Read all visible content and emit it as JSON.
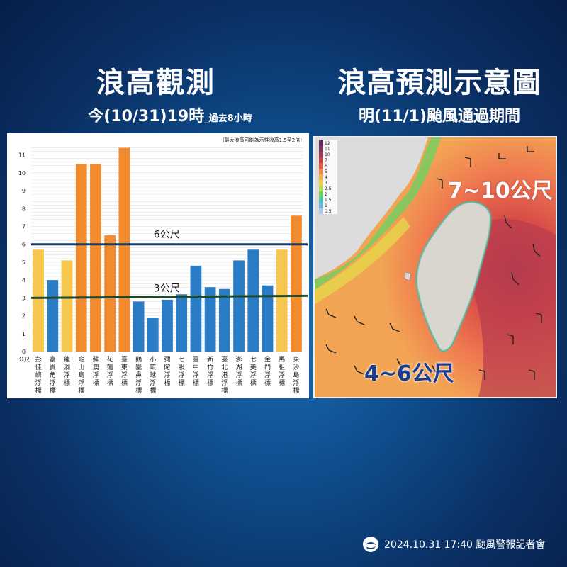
{
  "header": {
    "left_title": "浪高觀測",
    "left_subtitle": "今(10/31)19時",
    "left_subtitle_small": "_過去8小時",
    "right_title": "浪高預測示意圖",
    "right_subtitle": "明(11/1)颱風通過期間"
  },
  "chart_data": {
    "type": "bar",
    "note": "(最大浪高可能為示性浪高1.5至2倍)",
    "ylabel": "公尺",
    "ylim": [
      0,
      11.5
    ],
    "yticks": [
      0,
      1,
      2,
      3,
      4,
      5,
      6,
      7,
      8,
      9,
      10,
      11
    ],
    "categories": [
      "彭佳嶼浮標",
      "富貴角浮標",
      "龍洞浮標",
      "龜山島浮標",
      "蘇澳浮標",
      "花蓮浮標",
      "臺東浮標",
      "鵝鑾鼻浮標",
      "小琉球浮標",
      "彌陀浮標",
      "七股浮標",
      "臺中浮標",
      "新竹浮標",
      "臺北港浮標",
      "澎湖浮標",
      "七美浮標",
      "金門浮標",
      "馬祖浮標",
      "東沙島浮標"
    ],
    "values": [
      5.7,
      4.0,
      5.1,
      10.5,
      10.5,
      6.5,
      11.4,
      2.8,
      1.9,
      2.9,
      3.2,
      4.8,
      3.6,
      3.5,
      5.1,
      5.7,
      3.7,
      5.7,
      7.6
    ],
    "bar_colors": [
      "#f7c64f",
      "#2b7cc7",
      "#f7c64f",
      "#f28a2e",
      "#f28a2e",
      "#f28a2e",
      "#f28a2e",
      "#2b7cc7",
      "#2b7cc7",
      "#2b7cc7",
      "#2b7cc7",
      "#2b7cc7",
      "#2b7cc7",
      "#2b7cc7",
      "#2b7cc7",
      "#2b7cc7",
      "#2b7cc7",
      "#f7c64f",
      "#f28a2e"
    ],
    "reference_lines": [
      {
        "label": "6公尺",
        "y": 6.0,
        "color": "#173a6a"
      },
      {
        "label": "3公尺",
        "y": 3.0,
        "color": "#1d4a2a"
      }
    ]
  },
  "map": {
    "legend": [
      {
        "label": "12",
        "color": "#5c2a5e"
      },
      {
        "label": "11",
        "color": "#7a3566"
      },
      {
        "label": "10",
        "color": "#9c3a5a"
      },
      {
        "label": "7",
        "color": "#c0404a"
      },
      {
        "label": "6",
        "color": "#e35a45"
      },
      {
        "label": "5",
        "color": "#f08a55"
      },
      {
        "label": "4",
        "color": "#f2b04e"
      },
      {
        "label": "3",
        "color": "#e8d24a"
      },
      {
        "label": "2.5",
        "color": "#b6dc4c"
      },
      {
        "label": "2",
        "color": "#6ecf62"
      },
      {
        "label": "1.5",
        "color": "#4cc4a8"
      },
      {
        "label": "1",
        "color": "#6bb8e4"
      },
      {
        "label": "0.5",
        "color": "#a8c8ee"
      }
    ],
    "high_label": "7~10公尺",
    "low_label": "4~6公尺"
  },
  "footer": {
    "text": "2024.10.31  17:40 颱風警報記者會"
  }
}
